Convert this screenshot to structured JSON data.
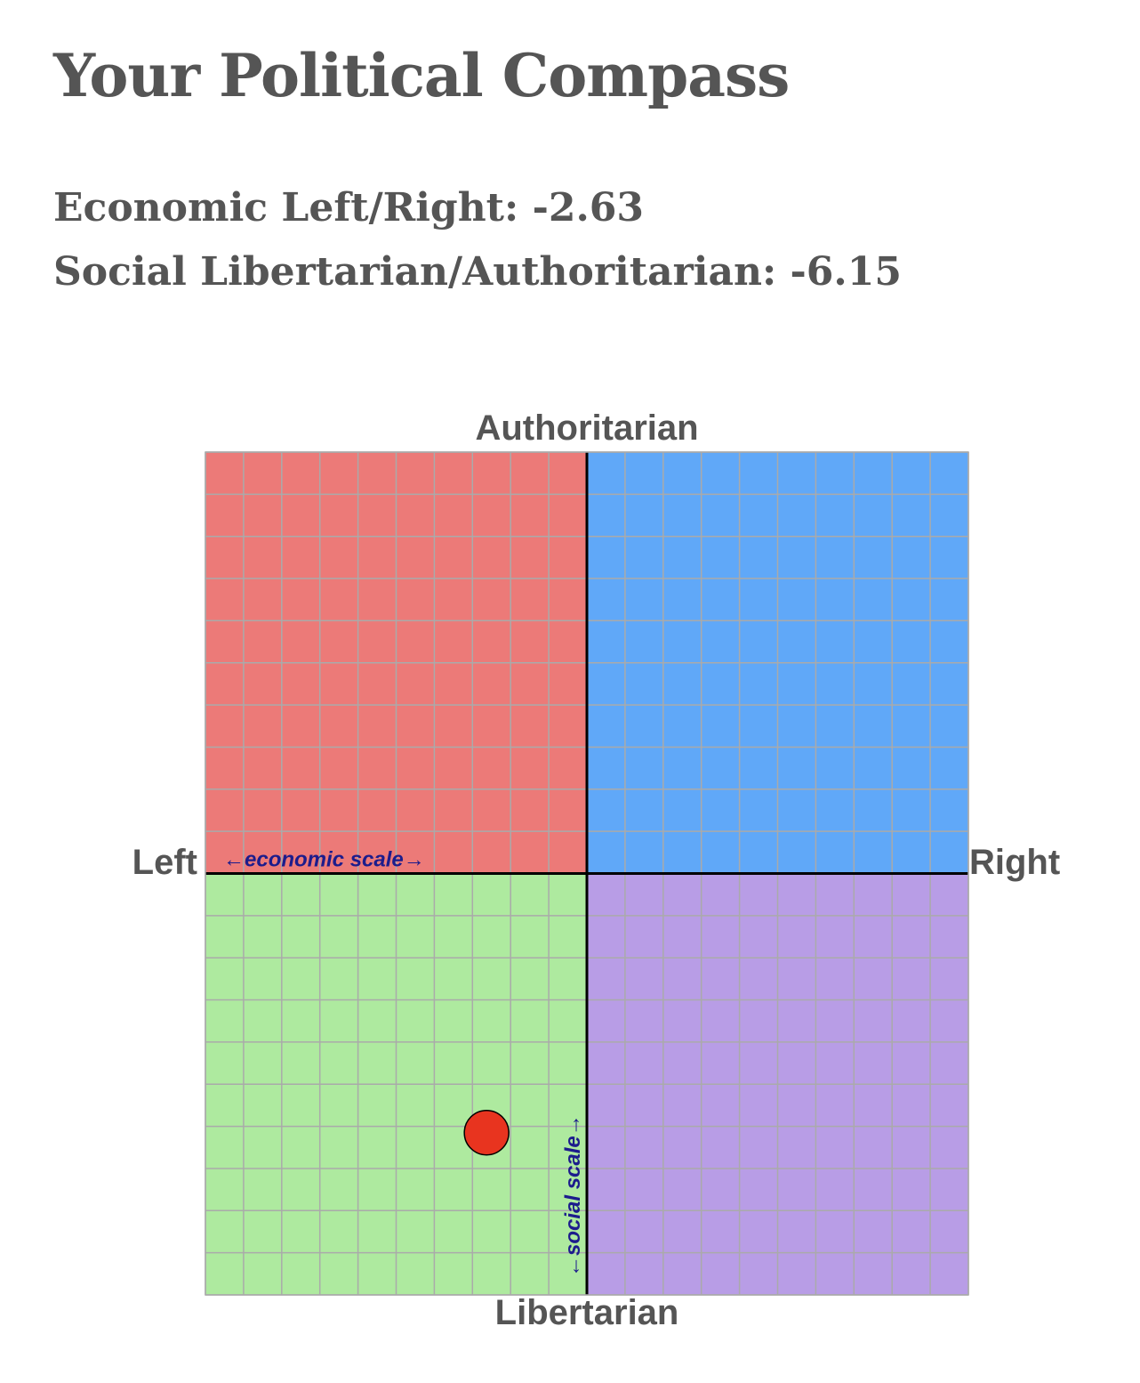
{
  "page": {
    "title": "Your Political Compass",
    "economic_line": "Economic Left/Right: -2.63",
    "social_line": "Social Libertarian/Authoritarian: -6.15"
  },
  "chart_data": {
    "type": "scatter",
    "title": "",
    "xlabel_left": "Left",
    "xlabel_right": "Right",
    "ylabel_top": "Authoritarian",
    "ylabel_bottom": "Libertarian",
    "xlim": [
      -10,
      10
    ],
    "ylim": [
      -10,
      10
    ],
    "grid": true,
    "annotations": {
      "economic_scale": "←economic scale→",
      "social_scale": "←social scale→"
    },
    "quadrants": {
      "authoritarian_left": "#ec7a78",
      "authoritarian_right": "#60a8f8",
      "libertarian_left": "#aeea9f",
      "libertarian_right": "#b89de6"
    },
    "colors": {
      "grid": "#aaaaaa",
      "axis": "#000000",
      "annotation": "#1c1c8c",
      "point": "#e8341f"
    },
    "points": [
      {
        "x": -2.63,
        "y": -6.15
      }
    ]
  }
}
